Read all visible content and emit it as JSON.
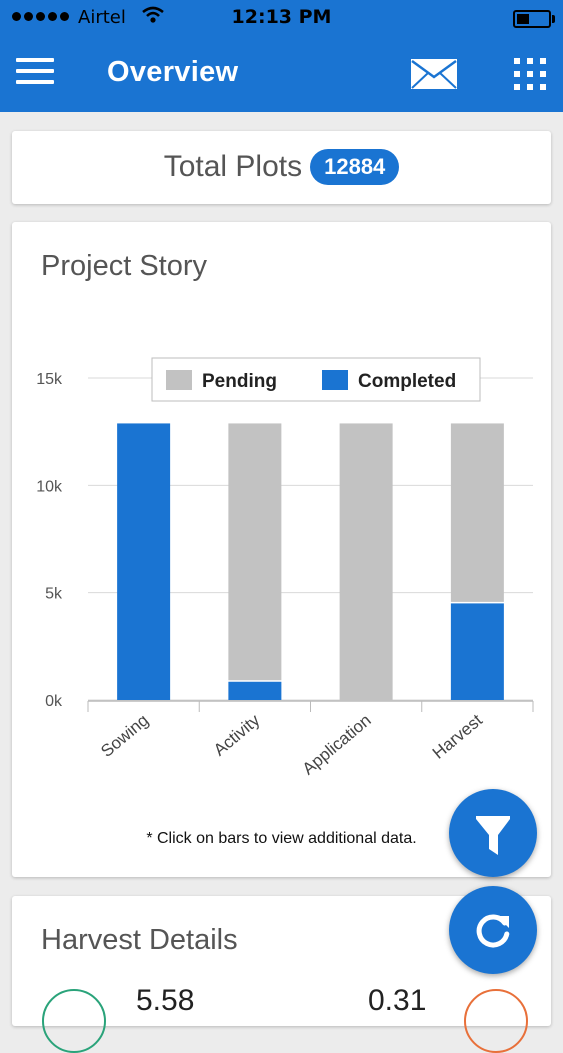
{
  "status_bar": {
    "carrier": "Airtel",
    "time": "12:13 PM"
  },
  "app_bar": {
    "title": "Overview",
    "menu_icon": "hamburger-menu-icon",
    "mail_icon": "mail-icon",
    "apps_icon": "apps-grid-icon"
  },
  "total": {
    "label": "Total Plots",
    "value": "12884"
  },
  "project_story": {
    "title": "Project Story",
    "footnote": "* Click on bars to view additional data."
  },
  "chart_data": {
    "type": "bar",
    "stacked": true,
    "categories": [
      "Sowing",
      "Activity",
      "Application",
      "Harvest"
    ],
    "series": [
      {
        "name": "Completed",
        "color": "#1a74d2",
        "values": [
          12884,
          850,
          0,
          4500
        ]
      },
      {
        "name": "Pending",
        "color": "#c2c2c2",
        "values": [
          0,
          12034,
          12884,
          8384
        ]
      }
    ],
    "yticks": [
      "0k",
      "5k",
      "10k",
      "15k"
    ],
    "ytick_values": [
      0,
      5000,
      10000,
      15000
    ],
    "ylim": [
      0,
      15000
    ],
    "grid": true,
    "legend": "top-center"
  },
  "harvest": {
    "title": "Harvest Details",
    "value_left": "5.58",
    "value_right": "0.31",
    "ring_left_color": "#2aa37a",
    "ring_right_color": "#e8703a"
  },
  "fabs": {
    "filter_icon": "filter-icon",
    "refresh_icon": "refresh-icon"
  },
  "colors": {
    "primary": "#1a74d2",
    "pending": "#c2c2c2"
  }
}
